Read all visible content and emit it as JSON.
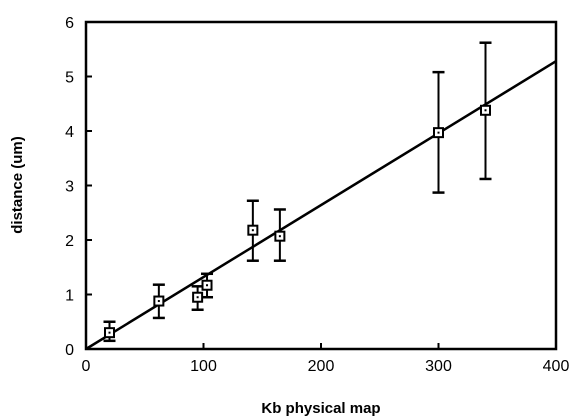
{
  "chart_data": {
    "type": "scatter",
    "xlabel": "Kb physical map",
    "ylabel": "distance  (um)",
    "xlim": [
      0,
      400
    ],
    "ylim": [
      0,
      6
    ],
    "x_ticks": [
      0,
      100,
      200,
      300,
      400
    ],
    "y_ticks": [
      0,
      1,
      2,
      3,
      4,
      5,
      6
    ],
    "grid": false,
    "legend": "none",
    "points": [
      {
        "x": 20,
        "y": 0.3,
        "err_low": 0.15,
        "err_high": 0.5
      },
      {
        "x": 62,
        "y": 0.88,
        "err_low": 0.57,
        "err_high": 1.18
      },
      {
        "x": 95,
        "y": 0.95,
        "err_low": 0.72,
        "err_high": 1.15
      },
      {
        "x": 103,
        "y": 1.17,
        "err_low": 0.95,
        "err_high": 1.38
      },
      {
        "x": 142,
        "y": 2.18,
        "err_low": 1.62,
        "err_high": 2.72
      },
      {
        "x": 165,
        "y": 2.07,
        "err_low": 1.62,
        "err_high": 2.56
      },
      {
        "x": 300,
        "y": 3.97,
        "err_low": 2.87,
        "err_high": 5.08
      },
      {
        "x": 340,
        "y": 4.38,
        "err_low": 3.12,
        "err_high": 5.62
      }
    ],
    "fit_line": {
      "x0": 0,
      "y0": 0,
      "x1": 400,
      "y1": 5.28
    },
    "colors": {
      "marks": "#000000",
      "background": "#ffffff"
    }
  }
}
